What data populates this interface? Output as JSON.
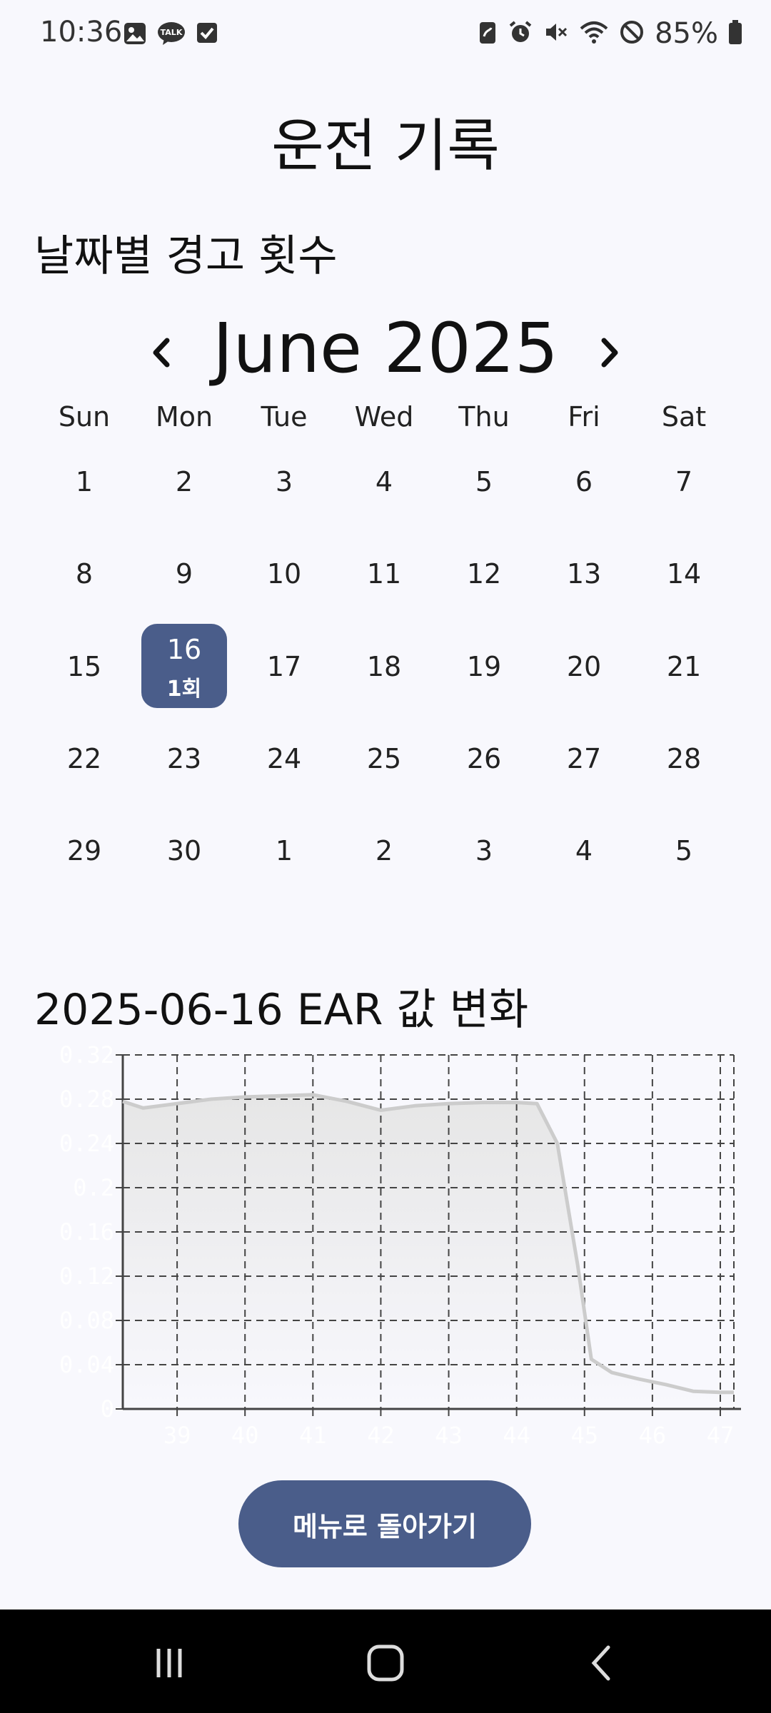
{
  "status_bar": {
    "time": "10:36",
    "battery": "85%",
    "left_icons": [
      "gallery-icon",
      "talk-icon",
      "checkbox-icon"
    ],
    "right_icons": [
      "save-icon",
      "alarm-icon",
      "mute-icon",
      "wifi-icon",
      "dnd-icon",
      "battery-icon"
    ],
    "talk_text": "TALK"
  },
  "header": {
    "title": "운전 기록"
  },
  "calendar": {
    "section_title": "날짜별 경고 횟수",
    "month_label": "June 2025",
    "weekdays": [
      "Sun",
      "Mon",
      "Tue",
      "Wed",
      "Thu",
      "Fri",
      "Sat"
    ],
    "weeks": [
      [
        "1",
        "2",
        "3",
        "4",
        "5",
        "6",
        "7"
      ],
      [
        "8",
        "9",
        "10",
        "11",
        "12",
        "13",
        "14"
      ],
      [
        "15",
        "16",
        "17",
        "18",
        "19",
        "20",
        "21"
      ],
      [
        "22",
        "23",
        "24",
        "25",
        "26",
        "27",
        "28"
      ],
      [
        "29",
        "30",
        "1",
        "2",
        "3",
        "4",
        "5"
      ]
    ],
    "selected_day": "16",
    "selected_count": "1회",
    "selected_color": "#4a5d8a"
  },
  "chart_section": {
    "title": "2025-06-16 EAR 값 변화"
  },
  "chart_data": {
    "type": "area",
    "x": [
      39,
      40,
      41,
      42,
      43,
      44,
      45,
      46,
      47
    ],
    "x_ticks": [
      "39",
      "40",
      "41",
      "42",
      "43",
      "44",
      "45",
      "46",
      "47"
    ],
    "y_ticks": [
      "0",
      "0.04",
      "0.08",
      "0.12",
      "0.16",
      "0.2",
      "0.24",
      "0.28",
      "0.32"
    ],
    "ylim": [
      0,
      0.32
    ],
    "xlim": [
      38.2,
      47.2
    ],
    "points": [
      [
        38.2,
        0.278
      ],
      [
        38.5,
        0.272
      ],
      [
        39.0,
        0.276
      ],
      [
        39.5,
        0.28
      ],
      [
        40.0,
        0.282
      ],
      [
        40.5,
        0.283
      ],
      [
        41.0,
        0.284
      ],
      [
        41.5,
        0.278
      ],
      [
        42.0,
        0.27
      ],
      [
        42.5,
        0.274
      ],
      [
        43.0,
        0.276
      ],
      [
        43.5,
        0.277
      ],
      [
        44.0,
        0.277
      ],
      [
        44.3,
        0.276
      ],
      [
        44.6,
        0.24
      ],
      [
        44.9,
        0.13
      ],
      [
        45.1,
        0.045
      ],
      [
        45.4,
        0.033
      ],
      [
        45.8,
        0.027
      ],
      [
        46.2,
        0.022
      ],
      [
        46.6,
        0.016
      ],
      [
        47.0,
        0.015
      ],
      [
        47.2,
        0.015
      ]
    ],
    "grid": true,
    "line_color": "#cccccc",
    "fill_color": "#e6e6e6"
  },
  "menu_button": {
    "label": "메뉴로 돌아가기",
    "color": "#4a5d8a"
  },
  "nav_bar": {
    "buttons": [
      "recent-apps-icon",
      "home-icon",
      "back-icon"
    ]
  }
}
